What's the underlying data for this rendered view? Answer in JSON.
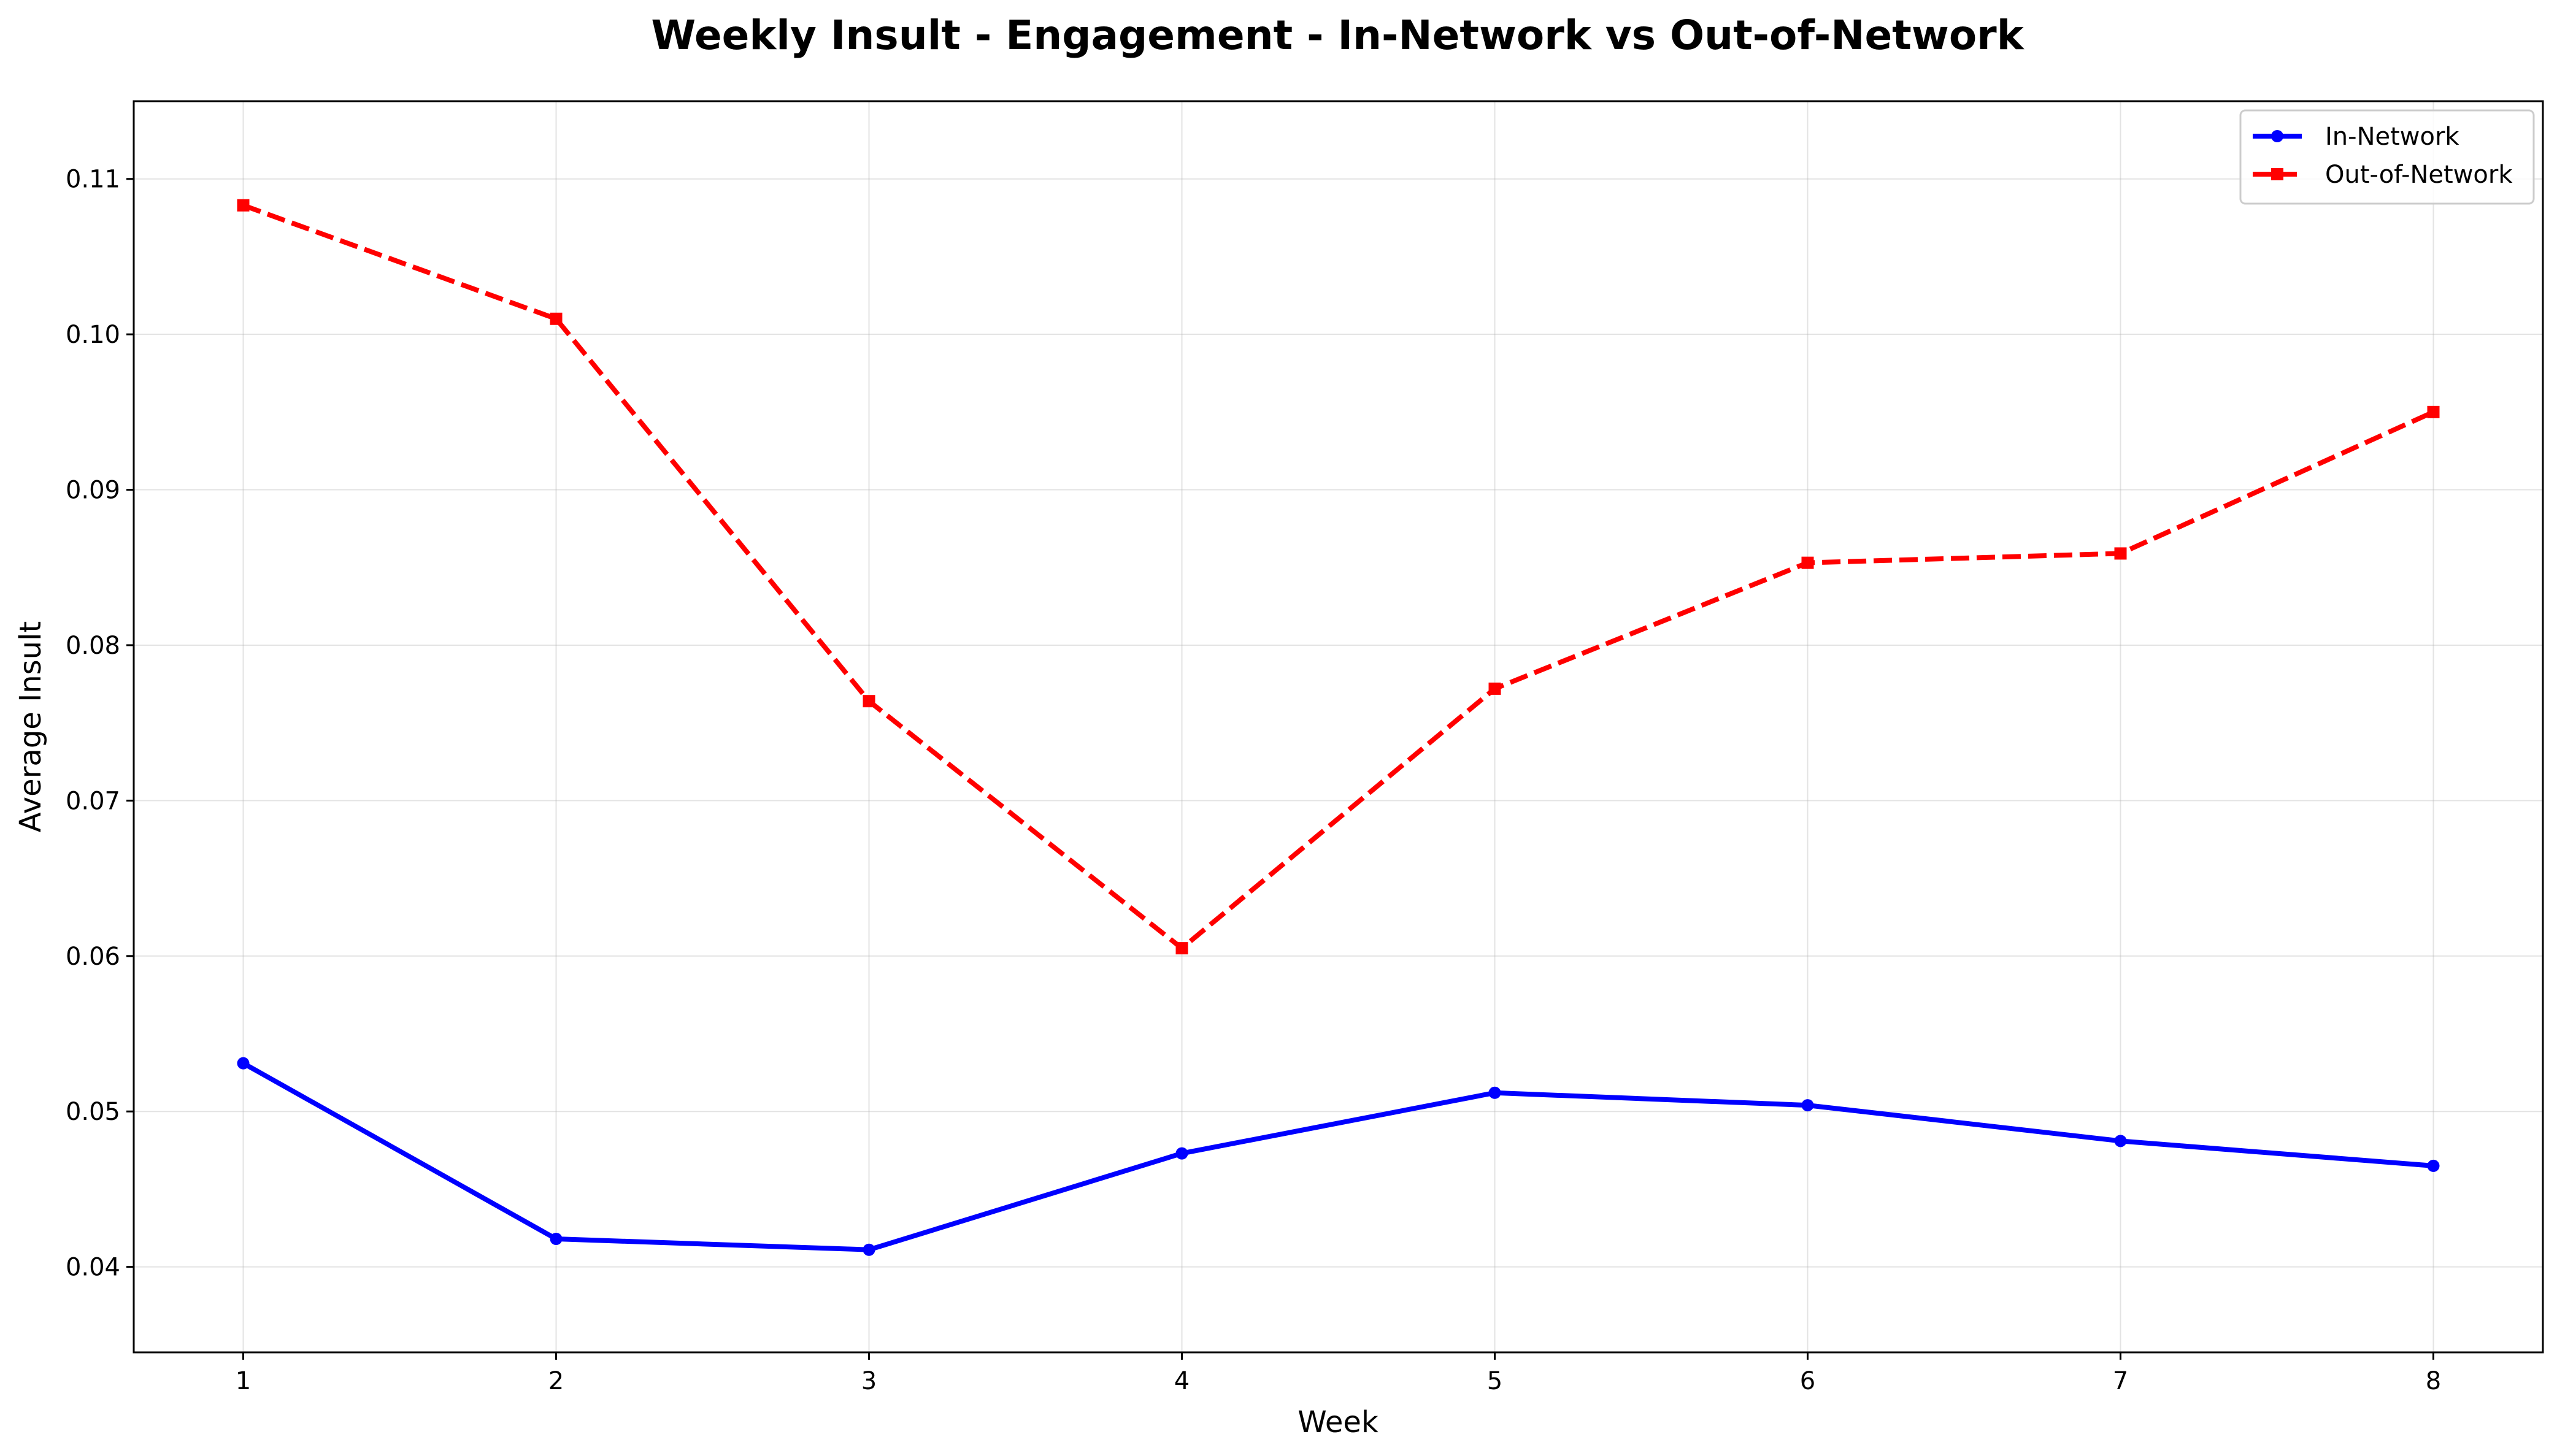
{
  "chart_data": {
    "type": "line",
    "title": "Weekly Insult - Engagement - In-Network vs Out-of-Network",
    "xlabel": "Week",
    "ylabel": "Average Insult",
    "x": [
      1,
      2,
      3,
      4,
      5,
      6,
      7,
      8
    ],
    "xlim": [
      0.65,
      8.35
    ],
    "ylim": [
      0.0345,
      0.115
    ],
    "xticks": [
      "1",
      "2",
      "3",
      "4",
      "5",
      "6",
      "7",
      "8"
    ],
    "yticks": [
      "0.04",
      "0.05",
      "0.06",
      "0.07",
      "0.08",
      "0.09",
      "0.10",
      "0.11"
    ],
    "grid": true,
    "legend_position": "top-right",
    "series": [
      {
        "name": "In-Network",
        "color": "#0000ff",
        "line_style": "solid",
        "marker": "circle",
        "values": [
          0.0531,
          0.0418,
          0.0411,
          0.0473,
          0.0512,
          0.0504,
          0.0481,
          0.0465
        ]
      },
      {
        "name": "Out-of-Network",
        "color": "#ff0000",
        "line_style": "dashed",
        "marker": "square",
        "values": [
          0.1083,
          0.101,
          0.0764,
          0.0605,
          0.0772,
          0.0853,
          0.0859,
          0.095
        ]
      }
    ]
  }
}
